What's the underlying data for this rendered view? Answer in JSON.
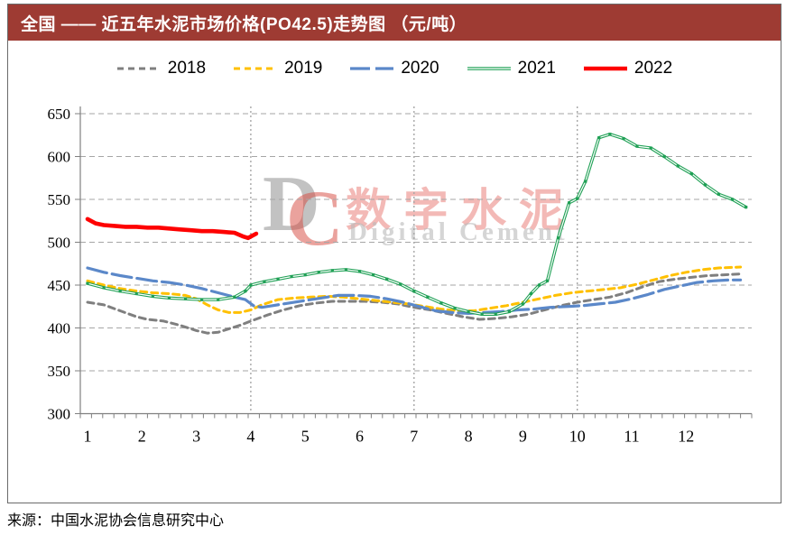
{
  "title_bar": {
    "text": "全国 —— 近五年水泥市场价格(PO42.5)走势图 （元/吨）",
    "bg_color": "#9E3B33",
    "text_color": "#FFFFFF"
  },
  "legend": [
    {
      "label": "2018"
    },
    {
      "label": "2019"
    },
    {
      "label": "2020"
    },
    {
      "label": "2021"
    },
    {
      "label": "2022"
    }
  ],
  "watermark": {
    "logo_d": "D",
    "logo_c": "C",
    "cn": "数字水泥",
    "en": "Digital Cement"
  },
  "source": "来源：中国水泥协会信息研究中心",
  "chart_data": {
    "type": "line",
    "title": "全国近五年水泥市场价格(PO42.5)走势图",
    "xlabel": "",
    "ylabel": "元/吨",
    "ylim": [
      300,
      650
    ],
    "y_ticks": [
      300,
      350,
      400,
      450,
      500,
      550,
      600,
      650
    ],
    "x_ticks": [
      1,
      2,
      3,
      4,
      5,
      6,
      7,
      8,
      9,
      10,
      11,
      12
    ],
    "xlim": [
      1,
      13.3
    ],
    "grid": "horizontal dashed; vertical dotted at months 4, 7, 10",
    "vertical_gridlines_at": [
      4,
      7,
      10
    ],
    "legend_position": "top",
    "axis_color": "#808080",
    "grid_color": "#A6A6A6",
    "series": [
      {
        "name": "2018",
        "color": "#7F7F7F",
        "width": 3,
        "dash": "7 5",
        "double_line": false,
        "markers": false,
        "values": [
          [
            1,
            430
          ],
          [
            1.3,
            427
          ],
          [
            1.6,
            420
          ],
          [
            1.9,
            413
          ],
          [
            2.1,
            410
          ],
          [
            2.4,
            408
          ],
          [
            2.7,
            403
          ],
          [
            3.0,
            397
          ],
          [
            3.2,
            394
          ],
          [
            3.4,
            395
          ],
          [
            3.6,
            399
          ],
          [
            3.8,
            403
          ],
          [
            4.0,
            408
          ],
          [
            4.3,
            415
          ],
          [
            4.6,
            421
          ],
          [
            4.9,
            426
          ],
          [
            5.2,
            429
          ],
          [
            5.5,
            431
          ],
          [
            5.8,
            431
          ],
          [
            6.1,
            431
          ],
          [
            6.4,
            430
          ],
          [
            6.7,
            428
          ],
          [
            7.0,
            424
          ],
          [
            7.3,
            421
          ],
          [
            7.6,
            417
          ],
          [
            7.9,
            413
          ],
          [
            8.2,
            410
          ],
          [
            8.5,
            411
          ],
          [
            8.8,
            413
          ],
          [
            9.1,
            416
          ],
          [
            9.4,
            421
          ],
          [
            9.7,
            426
          ],
          [
            10.0,
            430
          ],
          [
            10.3,
            433
          ],
          [
            10.6,
            436
          ],
          [
            10.9,
            441
          ],
          [
            11.2,
            448
          ],
          [
            11.5,
            454
          ],
          [
            11.8,
            457
          ],
          [
            12.1,
            459
          ],
          [
            12.4,
            461
          ],
          [
            12.7,
            462
          ],
          [
            13.0,
            463
          ]
        ]
      },
      {
        "name": "2019",
        "color": "#FFC000",
        "width": 3,
        "dash": "7 5",
        "double_line": false,
        "markers": false,
        "values": [
          [
            1,
            455
          ],
          [
            1.3,
            450
          ],
          [
            1.6,
            446
          ],
          [
            1.9,
            443
          ],
          [
            2.2,
            441
          ],
          [
            2.5,
            440
          ],
          [
            2.8,
            438
          ],
          [
            3.0,
            434
          ],
          [
            3.2,
            427
          ],
          [
            3.4,
            421
          ],
          [
            3.6,
            418
          ],
          [
            3.8,
            418
          ],
          [
            4.0,
            421
          ],
          [
            4.2,
            427
          ],
          [
            4.5,
            433
          ],
          [
            4.8,
            435
          ],
          [
            5.1,
            436
          ],
          [
            5.4,
            437
          ],
          [
            5.7,
            436
          ],
          [
            6.0,
            434
          ],
          [
            6.3,
            432
          ],
          [
            6.6,
            430
          ],
          [
            6.9,
            428
          ],
          [
            7.2,
            425
          ],
          [
            7.5,
            422
          ],
          [
            7.8,
            420
          ],
          [
            8.1,
            420
          ],
          [
            8.4,
            423
          ],
          [
            8.7,
            426
          ],
          [
            9.0,
            430
          ],
          [
            9.3,
            434
          ],
          [
            9.6,
            438
          ],
          [
            9.9,
            441
          ],
          [
            10.2,
            443
          ],
          [
            10.5,
            445
          ],
          [
            10.8,
            447
          ],
          [
            11.1,
            451
          ],
          [
            11.4,
            456
          ],
          [
            11.7,
            461
          ],
          [
            12.0,
            465
          ],
          [
            12.3,
            468
          ],
          [
            12.6,
            470
          ],
          [
            13.0,
            471
          ]
        ]
      },
      {
        "name": "2020",
        "color": "#5B88C9",
        "width": 3.2,
        "dash": "22 6",
        "double_line": false,
        "markers": false,
        "values": [
          [
            1,
            470
          ],
          [
            1.3,
            465
          ],
          [
            1.6,
            461
          ],
          [
            1.9,
            458
          ],
          [
            2.2,
            455
          ],
          [
            2.5,
            453
          ],
          [
            2.8,
            450
          ],
          [
            3.1,
            446
          ],
          [
            3.4,
            441
          ],
          [
            3.7,
            436
          ],
          [
            3.9,
            433
          ],
          [
            4.05,
            426
          ],
          [
            4.2,
            424
          ],
          [
            4.4,
            426
          ],
          [
            4.7,
            429
          ],
          [
            5.0,
            432
          ],
          [
            5.3,
            435
          ],
          [
            5.6,
            438
          ],
          [
            5.9,
            438
          ],
          [
            6.2,
            437
          ],
          [
            6.5,
            434
          ],
          [
            6.8,
            430
          ],
          [
            7.1,
            425
          ],
          [
            7.4,
            420
          ],
          [
            7.7,
            418
          ],
          [
            8.0,
            417
          ],
          [
            8.3,
            418
          ],
          [
            8.6,
            419
          ],
          [
            8.9,
            421
          ],
          [
            9.2,
            422
          ],
          [
            9.5,
            424
          ],
          [
            9.8,
            425
          ],
          [
            10.1,
            426
          ],
          [
            10.4,
            428
          ],
          [
            10.7,
            430
          ],
          [
            11.0,
            434
          ],
          [
            11.3,
            439
          ],
          [
            11.6,
            445
          ],
          [
            11.9,
            449
          ],
          [
            12.2,
            453
          ],
          [
            12.5,
            455
          ],
          [
            12.8,
            456
          ],
          [
            13.0,
            456
          ]
        ]
      },
      {
        "name": "2021",
        "color": "#1FA055",
        "width": 3.4,
        "dash": "",
        "double_line": true,
        "markers": true,
        "values": [
          [
            1,
            452
          ],
          [
            1.3,
            447
          ],
          [
            1.6,
            443
          ],
          [
            1.9,
            440
          ],
          [
            2.2,
            437
          ],
          [
            2.5,
            435
          ],
          [
            2.8,
            434
          ],
          [
            3.1,
            433
          ],
          [
            3.4,
            433
          ],
          [
            3.7,
            436
          ],
          [
            3.9,
            443
          ],
          [
            4.0,
            450
          ],
          [
            4.25,
            454
          ],
          [
            4.5,
            457
          ],
          [
            4.75,
            460
          ],
          [
            5.0,
            462
          ],
          [
            5.25,
            465
          ],
          [
            5.5,
            467
          ],
          [
            5.75,
            468
          ],
          [
            6.0,
            466
          ],
          [
            6.25,
            462
          ],
          [
            6.5,
            457
          ],
          [
            6.75,
            451
          ],
          [
            7.0,
            443
          ],
          [
            7.25,
            436
          ],
          [
            7.5,
            429
          ],
          [
            7.75,
            423
          ],
          [
            8.0,
            419
          ],
          [
            8.25,
            416
          ],
          [
            8.5,
            416
          ],
          [
            8.75,
            419
          ],
          [
            9.0,
            428
          ],
          [
            9.15,
            440
          ],
          [
            9.3,
            450
          ],
          [
            9.45,
            455
          ],
          [
            9.65,
            505
          ],
          [
            9.85,
            546
          ],
          [
            10.0,
            551
          ],
          [
            10.15,
            571
          ],
          [
            10.4,
            622
          ],
          [
            10.6,
            626
          ],
          [
            10.85,
            621
          ],
          [
            11.1,
            612
          ],
          [
            11.35,
            610
          ],
          [
            11.6,
            600
          ],
          [
            11.85,
            589
          ],
          [
            12.1,
            580
          ],
          [
            12.35,
            567
          ],
          [
            12.6,
            556
          ],
          [
            12.85,
            550
          ],
          [
            13.1,
            541
          ]
        ]
      },
      {
        "name": "2022",
        "color": "#FE0000",
        "width": 4.6,
        "dash": "",
        "double_line": false,
        "markers": false,
        "values": [
          [
            1,
            527
          ],
          [
            1.15,
            522
          ],
          [
            1.3,
            520
          ],
          [
            1.5,
            519
          ],
          [
            1.7,
            518
          ],
          [
            1.9,
            518
          ],
          [
            2.1,
            517
          ],
          [
            2.3,
            517
          ],
          [
            2.5,
            516
          ],
          [
            2.7,
            515
          ],
          [
            2.9,
            514
          ],
          [
            3.1,
            513
          ],
          [
            3.3,
            513
          ],
          [
            3.5,
            512
          ],
          [
            3.7,
            511
          ],
          [
            3.85,
            507
          ],
          [
            3.95,
            505
          ],
          [
            4.1,
            510
          ]
        ]
      }
    ]
  }
}
